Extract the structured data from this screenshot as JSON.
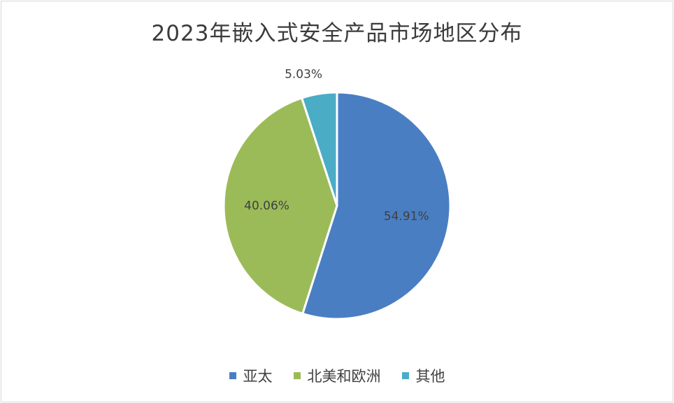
{
  "chart_data": {
    "type": "pie",
    "title": "2023年嵌入式安全产品市场地区分布",
    "categories": [
      "亚太",
      "北美和欧洲",
      "其他"
    ],
    "values": [
      54.91,
      40.06,
      5.03
    ],
    "labels": [
      "54.91%",
      "40.06%",
      "5.03%"
    ],
    "colors": [
      "#4A7EC2",
      "#9BBB59",
      "#4BACC6"
    ],
    "legend_position": "bottom",
    "start": "12 o'clock, clockwise"
  }
}
